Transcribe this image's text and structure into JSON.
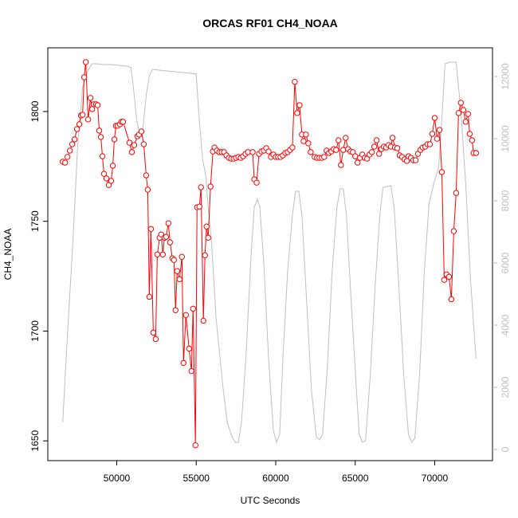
{
  "chart_data": {
    "type": "line",
    "title": "ORCAS RF01 CH4_NOAA",
    "xlabel": "UTC Seconds",
    "ylabel": "CH4_NOAA",
    "xlim": [
      45664,
      73636
    ],
    "ylim": [
      1641,
      1829
    ],
    "y2lim": [
      -359,
      12923
    ],
    "xticks": [
      50000,
      55000,
      60000,
      65000,
      70000
    ],
    "yticks": [
      1650,
      1700,
      1750,
      1800
    ],
    "y2ticks": [
      0,
      2000,
      4000,
      6000,
      8000,
      10000,
      12000
    ],
    "series": [
      {
        "color": "#ff0000",
        "markers": true,
        "x": [
          46600,
          46750,
          46900,
          47050,
          47200,
          47350,
          47500,
          47650,
          47750,
          47850,
          47950,
          48050,
          48200,
          48350,
          48450,
          48550,
          48700,
          48800,
          48900,
          49000,
          49100,
          49200,
          49350,
          49500,
          49650,
          49750,
          49850,
          49950,
          50050,
          50200,
          50300,
          50400,
          50800,
          50950,
          51100,
          51300,
          51400,
          51550,
          51700,
          51850,
          51950,
          52050,
          52150,
          52300,
          52450,
          52550,
          52700,
          52800,
          52900,
          53000,
          53100,
          53250,
          53350,
          53500,
          53600,
          53700,
          53800,
          53950,
          54100,
          54200,
          54350,
          54550,
          54700,
          54800,
          54950,
          55050,
          55200,
          55300,
          55450,
          55550,
          55650,
          55750,
          55900,
          56050,
          56150,
          56300,
          56450,
          56600,
          56750,
          56900,
          57050,
          57200,
          57350,
          57500,
          57650,
          57800,
          57950,
          58100,
          58250,
          58550,
          58650,
          58800,
          58950,
          59100,
          59250,
          59400,
          59550,
          59700,
          59850,
          60000,
          60150,
          60300,
          60450,
          60600,
          60750,
          60900,
          61050,
          61200,
          61350,
          61500,
          61650,
          61750,
          61900,
          62050,
          62200,
          62450,
          62600,
          62750,
          62900,
          63050,
          63200,
          63350,
          63500,
          63650,
          63800,
          63950,
          64100,
          64250,
          64400,
          64550,
          64700,
          64850,
          65000,
          65150,
          65300,
          65450,
          65600,
          65750,
          65900,
          66050,
          66200,
          66350,
          66500,
          66650,
          66800,
          66950,
          67100,
          67250,
          67350,
          67500,
          67650,
          67800,
          67950,
          68100,
          68250,
          68350,
          68500,
          68650,
          68800,
          68950,
          69100,
          69250,
          69400,
          69550,
          69700,
          69850,
          70000,
          70150,
          70300,
          70450,
          70600,
          70750,
          70900,
          71050,
          71200,
          71350,
          71500,
          71650,
          71800,
          71950,
          72100,
          72200,
          72350,
          72450,
          72600
        ],
        "values": [
          1777.1,
          1776.7,
          1779.3,
          1782.2,
          1785.1,
          1787.3,
          1792.0,
          1794.2,
          1798.2,
          1798.5,
          1815.6,
          1822.5,
          1796.4,
          1806.2,
          1801.1,
          1803.3,
          1803.3,
          1802.9,
          1791.3,
          1788.4,
          1779.6,
          1771.6,
          1769.5,
          1766.5,
          1768.4,
          1775.3,
          1787.3,
          1793.5,
          1793.5,
          1794.2,
          1795.3,
          1795.3,
          1785.8,
          1781.5,
          1784.7,
          1788.7,
          1789.5,
          1790.9,
          1785.1,
          1770.9,
          1764.4,
          1715.6,
          1746.5,
          1699.3,
          1696.4,
          1734.9,
          1742.5,
          1744.0,
          1734.9,
          1742.5,
          1742.9,
          1749.1,
          1740.4,
          1733.1,
          1732.4,
          1709.5,
          1727.3,
          1723.6,
          1733.8,
          1685.5,
          1707.3,
          1692.0,
          1681.8,
          1710.2,
          1648.0,
          1756.4,
          1756.7,
          1765.5,
          1704.7,
          1734.5,
          1747.6,
          1742.5,
          1765.8,
          1781.8,
          1783.6,
          1782.2,
          1781.5,
          1781.5,
          1781.5,
          1780.0,
          1778.9,
          1778.5,
          1778.5,
          1778.9,
          1779.3,
          1778.9,
          1779.6,
          1780.7,
          1781.5,
          1781.5,
          1769.1,
          1767.6,
          1780.7,
          1781.8,
          1782.2,
          1783.3,
          1781.8,
          1779.3,
          1780.4,
          1779.3,
          1779.3,
          1779.3,
          1780.0,
          1781.1,
          1781.5,
          1782.5,
          1783.6,
          1813.5,
          1799.3,
          1802.9,
          1789.5,
          1786.5,
          1789.5,
          1785.5,
          1781.5,
          1779.3,
          1778.9,
          1778.9,
          1778.9,
          1779.3,
          1782.2,
          1781.1,
          1781.8,
          1782.9,
          1782.5,
          1786.9,
          1775.6,
          1782.5,
          1788.0,
          1782.9,
          1781.8,
          1781.5,
          1779.6,
          1776.7,
          1778.9,
          1780.4,
          1778.9,
          1778.5,
          1780.4,
          1781.5,
          1784.0,
          1786.9,
          1780.7,
          1782.9,
          1784.0,
          1783.6,
          1784.7,
          1784.0,
          1788.0,
          1783.6,
          1783.3,
          1780.0,
          1779.3,
          1778.2,
          1777.5,
          1779.6,
          1778.9,
          1777.8,
          1777.8,
          1780.7,
          1782.5,
          1783.6,
          1784.0,
          1785.1,
          1785.1,
          1789.8,
          1797.1,
          1787.6,
          1791.6,
          1772.4,
          1723.3,
          1725.8,
          1724.7,
          1714.5,
          1745.5,
          1762.9,
          1799.3,
          1804.0,
          1800.7,
          1795.3,
          1798.9,
          1789.8,
          1786.9,
          1781.1,
          1781.1
        ]
      },
      {
        "color": "#bebebe",
        "axis": "y2",
        "x": [
          46600,
          46900,
          47250,
          47550,
          47850,
          48150,
          48450,
          48750,
          49150,
          49650,
          50150,
          50650,
          50900,
          51050,
          51250,
          51450,
          51650,
          51850,
          52050,
          52250,
          52650,
          53650,
          54650,
          55000,
          55150,
          55400,
          55600,
          55750,
          55950,
          56250,
          56650,
          56950,
          57250,
          57450,
          57650,
          57850,
          58150,
          58450,
          58650,
          58850,
          59000,
          59250,
          59550,
          59850,
          60050,
          60250,
          60450,
          60750,
          61050,
          61250,
          61450,
          61650,
          61950,
          62250,
          62550,
          62750,
          62950,
          63250,
          63550,
          63850,
          64050,
          64250,
          64450,
          64750,
          65050,
          65250,
          65450,
          65650,
          65950,
          66250,
          66550,
          66750,
          67250,
          67450,
          67750,
          68050,
          68350,
          68550,
          68750,
          69050,
          69350,
          69650,
          69950,
          70250,
          70450,
          70650,
          70950,
          71350,
          71650,
          71950,
          72250,
          72600
        ],
        "values": [
          872,
          3692,
          6769,
          9846,
          11641,
          12154,
          12410,
          12410,
          12384,
          12384,
          12359,
          12333,
          12282,
          11641,
          10615,
          10103,
          10359,
          11384,
          12026,
          12231,
          12205,
          12154,
          12103,
          12077,
          10872,
          9333,
          8820,
          7795,
          6769,
          4205,
          2154,
          872,
          410,
          231,
          231,
          872,
          3179,
          6256,
          7795,
          8051,
          7795,
          6000,
          2923,
          615,
          231,
          487,
          2923,
          5743,
          7538,
          8308,
          8308,
          7538,
          4718,
          1897,
          410,
          308,
          487,
          2667,
          5743,
          7795,
          8384,
          8384,
          7538,
          4718,
          2154,
          487,
          231,
          282,
          2410,
          5231,
          7538,
          8436,
          8487,
          7795,
          5231,
          2410,
          487,
          231,
          359,
          2410,
          5743,
          7923,
          8564,
          9077,
          10615,
          12410,
          12461,
          12461,
          10872,
          8564,
          5487,
          2923
        ]
      }
    ]
  }
}
